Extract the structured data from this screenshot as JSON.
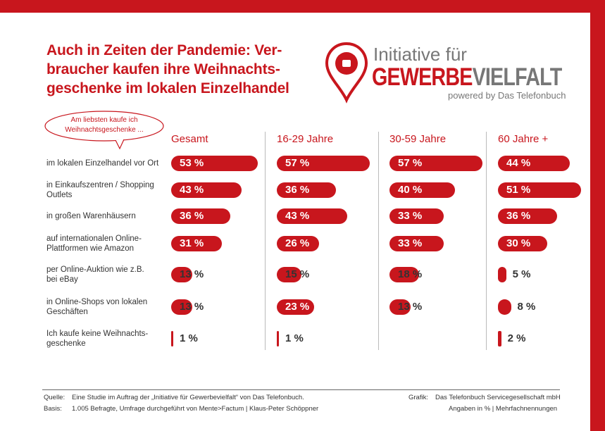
{
  "chart_data": {
    "type": "bar",
    "orientation": "horizontal",
    "color": "#c8161d",
    "title_lines": [
      "Auch in Zeiten der Pandemie: Ver-",
      "braucher kaufen ihre Weihnachts-",
      "geschenke im lokalen Einzelhandel"
    ],
    "bubble": "Am liebsten kaufe ich\nWeihnachtsgeschenke ...",
    "logo": {
      "line1": "Initiative für",
      "brand_red": "GEWERBE",
      "brand_gray": "VIELFALT",
      "tagline": "powered by Das Telefonbuch"
    },
    "categories": [
      "im lokalen Einzelhandel vor Ort",
      "in Einkaufszentren / Shopping\nOutlets",
      "in großen Warenhäusern",
      "auf internationalen Online-\nPlattformen wie Amazon",
      "per Online-Auktion wie z.B.\nbei eBay",
      "in Online-Shops von lokalen\nGeschäften",
      "Ich kaufe keine Weihnachts-\ngeschenke"
    ],
    "series": [
      {
        "name": "Gesamt",
        "values": [
          53,
          43,
          36,
          31,
          13,
          13,
          1
        ],
        "value_labels": [
          "53 %",
          "43 %",
          "36 %",
          "31 %",
          "13 %",
          "13 %",
          "1 %"
        ]
      },
      {
        "name": "16-29 Jahre",
        "values": [
          57,
          36,
          43,
          26,
          15,
          23,
          1
        ],
        "value_labels": [
          "57 %",
          "36 %",
          "43 %",
          "26 %",
          "15 %",
          "23 %",
          "1 %"
        ]
      },
      {
        "name": "30-59 Jahre",
        "values": [
          57,
          40,
          33,
          33,
          18,
          13,
          null
        ],
        "value_labels": [
          "57 %",
          "40 %",
          "33 %",
          "33 %",
          "18 %",
          "13 %",
          null
        ]
      },
      {
        "name": "60 Jahre +",
        "values": [
          44,
          51,
          36,
          30,
          5,
          8,
          2
        ],
        "value_labels": [
          "44 %",
          "51 %",
          "36 %",
          "30 %",
          "5 %",
          "8 %",
          "2 %"
        ]
      }
    ],
    "footer": {
      "source_label": "Quelle:",
      "source": "Eine Studie im Auftrag der „Initiative für Gewerbevielfalt“ von Das Telefonbuch.",
      "basis_label": "Basis:",
      "basis": "1.005 Befragte, Umfrage durchgeführt von Mente>Factum | Klaus-Peter Schöppner",
      "graphic_label": "Grafik:",
      "graphic": "Das Telefonbuch Servicegesellschaft mbH",
      "note": "Angaben in % | Mehrfachnennungen"
    }
  }
}
